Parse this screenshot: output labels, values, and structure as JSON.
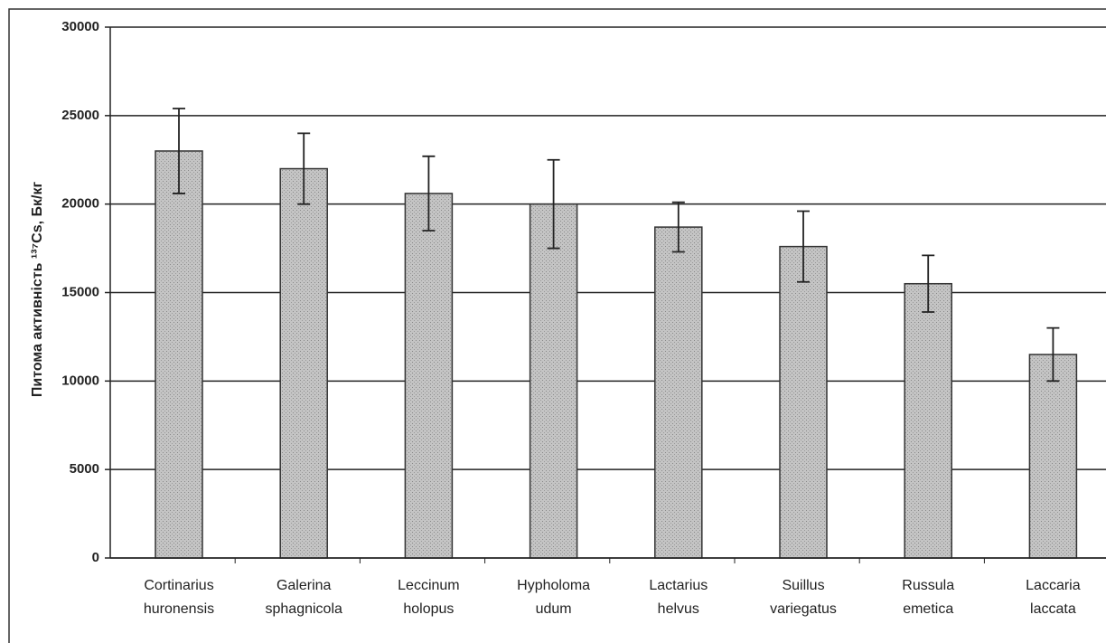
{
  "chart_data": {
    "type": "bar",
    "ylabel": "Питома активність ¹³⁷Cs, Бк/кг",
    "categories": [
      [
        "Cortinarius",
        "huronensis"
      ],
      [
        "Galerina",
        "sphagnicola"
      ],
      [
        "Leccinum",
        "holopus"
      ],
      [
        "Hypholoma",
        "udum"
      ],
      [
        "Lactarius",
        "helvus"
      ],
      [
        "Suillus",
        "variegatus"
      ],
      [
        "Russula",
        "emetica"
      ],
      [
        "Laccaria",
        "laccata"
      ]
    ],
    "values": [
      23000,
      22000,
      20600,
      20000,
      18700,
      17600,
      15500,
      11500
    ],
    "errors": [
      2400,
      2000,
      2100,
      2500,
      1400,
      2000,
      1600,
      1500
    ],
    "color": "#b4b4b4",
    "ylim": [
      0,
      30000
    ],
    "yticks": [
      0,
      5000,
      10000,
      15000,
      20000,
      25000,
      30000
    ],
    "grid": true
  }
}
